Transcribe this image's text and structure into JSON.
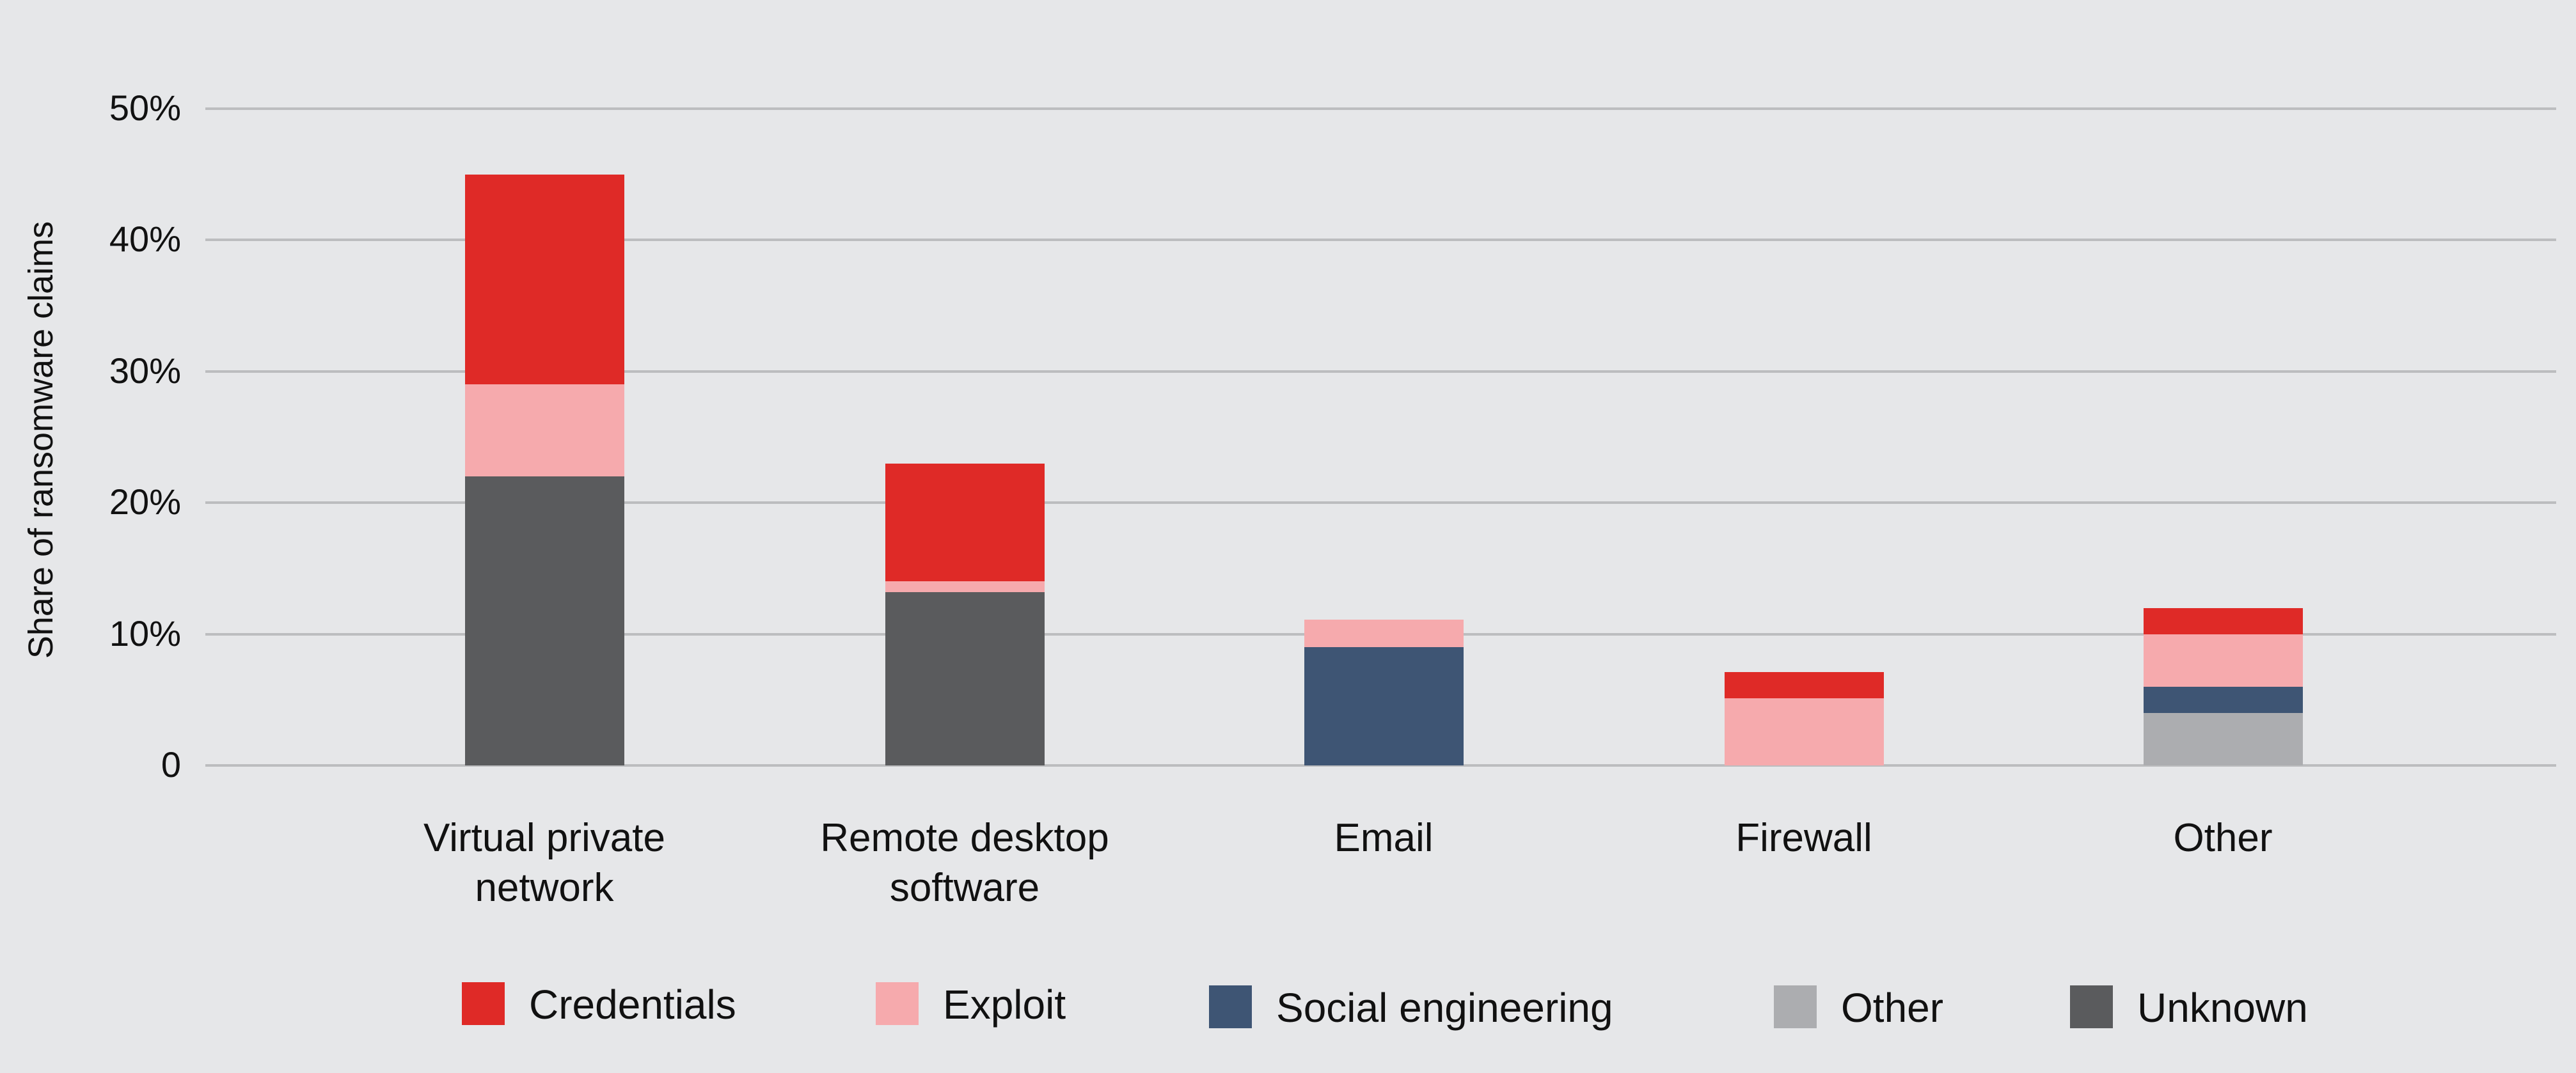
{
  "chart_data": {
    "type": "bar",
    "stacked": true,
    "title": "",
    "xlabel": "",
    "ylabel": "Share of ransomware claims",
    "ylim": [
      0,
      50
    ],
    "yticks": [
      "0",
      "10%",
      "20%",
      "30%",
      "40%",
      "50%"
    ],
    "grid": true,
    "legend_position": "bottom",
    "categories": [
      "Virtual private network",
      "Remote desktop software",
      "Email",
      "Firewall",
      "Other"
    ],
    "category_labels": [
      [
        "Virtual private",
        "network"
      ],
      [
        "Remote desktop",
        "software"
      ],
      [
        "Email",
        ""
      ],
      [
        "Firewall",
        ""
      ],
      [
        "Other",
        ""
      ]
    ],
    "series": [
      {
        "name": "Unknown",
        "color": "#5a5b5d",
        "values": [
          22,
          13.2,
          0,
          0,
          0
        ]
      },
      {
        "name": "Other",
        "color": "#acadb0",
        "values": [
          0,
          0,
          0,
          0,
          4
        ]
      },
      {
        "name": "Social engineering",
        "color": "#3e5574",
        "values": [
          0,
          0,
          9,
          0,
          2
        ]
      },
      {
        "name": "Exploit",
        "color": "#f6aaad",
        "values": [
          7,
          0.8,
          2.1,
          5.1,
          4
        ]
      },
      {
        "name": "Credentials",
        "color": "#df2a27",
        "values": [
          16,
          9,
          0,
          2,
          2
        ]
      }
    ],
    "totals": [
      45,
      23,
      11.1,
      7.1,
      12
    ]
  },
  "legend": [
    {
      "label": "Credentials",
      "color": "#df2a27"
    },
    {
      "label": "Exploit",
      "color": "#f6aaad"
    },
    {
      "label": "Social engineering",
      "color": "#3e5574"
    },
    {
      "label": "Other",
      "color": "#acadb0"
    },
    {
      "label": "Unknown",
      "color": "#5a5b5d"
    }
  ]
}
